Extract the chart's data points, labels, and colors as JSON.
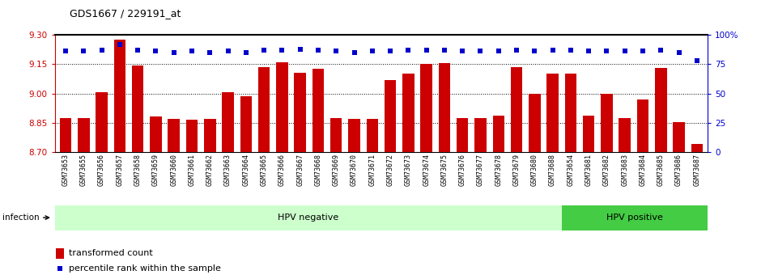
{
  "title": "GDS1667 / 229191_at",
  "samples": [
    "GSM73653",
    "GSM73655",
    "GSM73656",
    "GSM73657",
    "GSM73658",
    "GSM73659",
    "GSM73660",
    "GSM73661",
    "GSM73662",
    "GSM73663",
    "GSM73664",
    "GSM73665",
    "GSM73666",
    "GSM73667",
    "GSM73668",
    "GSM73669",
    "GSM73670",
    "GSM73671",
    "GSM73672",
    "GSM73673",
    "GSM73674",
    "GSM73675",
    "GSM73676",
    "GSM73677",
    "GSM73678",
    "GSM73679",
    "GSM73680",
    "GSM73688",
    "GSM73654",
    "GSM73681",
    "GSM73682",
    "GSM73683",
    "GSM73684",
    "GSM73685",
    "GSM73686",
    "GSM73687"
  ],
  "transformed_count": [
    8.875,
    8.872,
    9.005,
    9.275,
    9.143,
    8.882,
    8.868,
    8.866,
    8.869,
    9.007,
    8.985,
    9.133,
    9.16,
    9.105,
    9.127,
    8.873,
    8.87,
    8.868,
    9.07,
    9.1,
    9.15,
    9.155,
    8.874,
    8.875,
    8.885,
    9.135,
    9.0,
    9.1,
    9.1,
    8.885,
    9.0,
    8.875,
    8.97,
    9.13,
    8.852,
    8.74
  ],
  "percentile_rank": [
    86,
    86,
    87,
    92,
    87,
    86,
    85,
    86,
    85,
    86,
    85,
    87,
    87,
    88,
    87,
    86,
    85,
    86,
    86,
    87,
    87,
    87,
    86,
    86,
    86,
    87,
    86,
    87,
    87,
    86,
    86,
    86,
    86,
    87,
    85,
    78
  ],
  "hpv_negative_count": 28,
  "ylim_left": [
    8.7,
    9.3
  ],
  "ylim_right": [
    0,
    100
  ],
  "yticks_left": [
    8.7,
    8.85,
    9.0,
    9.15,
    9.3
  ],
  "yticks_right": [
    0,
    25,
    50,
    75,
    100
  ],
  "bar_color": "#cc0000",
  "dot_color": "#0000cc",
  "hpv_neg_color": "#ccffcc",
  "hpv_pos_color": "#44cc44",
  "label_color_left": "#cc0000",
  "label_color_right": "#0000cc",
  "group_label_hpv_neg": "HPV negative",
  "group_label_hpv_pos": "HPV positive",
  "infection_label": "infection",
  "legend_bar": "transformed count",
  "legend_dot": "percentile rank within the sample",
  "xtick_bg": "#c8c8c8"
}
